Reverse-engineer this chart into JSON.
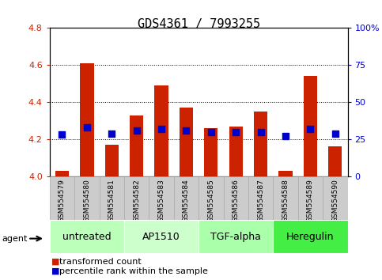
{
  "title": "GDS4361 / 7993255",
  "samples": [
    "GSM554579",
    "GSM554580",
    "GSM554581",
    "GSM554582",
    "GSM554583",
    "GSM554584",
    "GSM554585",
    "GSM554586",
    "GSM554587",
    "GSM554588",
    "GSM554589",
    "GSM554590"
  ],
  "bar_values": [
    4.03,
    4.61,
    4.17,
    4.33,
    4.49,
    4.37,
    4.26,
    4.27,
    4.35,
    4.03,
    4.54,
    4.16
  ],
  "percentile_values": [
    28,
    33,
    29,
    31,
    32,
    31,
    30,
    30,
    30,
    27,
    32,
    29
  ],
  "bar_bottom": 4.0,
  "ylim": [
    4.0,
    4.8
  ],
  "y2lim": [
    0,
    100
  ],
  "yticks": [
    4.0,
    4.2,
    4.4,
    4.6,
    4.8
  ],
  "y2ticks": [
    0,
    25,
    50,
    75,
    100
  ],
  "bar_color": "#cc2200",
  "dot_color": "#0000cc",
  "groups": [
    {
      "label": "untreated",
      "start": 0,
      "end": 3,
      "color": "#bbffbb"
    },
    {
      "label": "AP1510",
      "start": 3,
      "end": 6,
      "color": "#ccffcc"
    },
    {
      "label": "TGF-alpha",
      "start": 6,
      "end": 9,
      "color": "#aaffaa"
    },
    {
      "label": "Heregulin",
      "start": 9,
      "end": 12,
      "color": "#44ee44"
    }
  ],
  "agent_label": "agent",
  "bar_color_left_axis": "#cc2200",
  "dot_color_right_axis": "#0000cc",
  "title_fontsize": 11,
  "tick_fontsize": 8,
  "legend_fontsize": 8,
  "group_fontsize": 9,
  "bar_width": 0.55,
  "dot_size": 35,
  "grid_color": "#000000",
  "bg_color": "#ffffff",
  "plot_bg_color": "#ffffff",
  "spine_color": "#000000",
  "sample_box_color": "#cccccc",
  "sample_box_edge": "#aaaaaa"
}
